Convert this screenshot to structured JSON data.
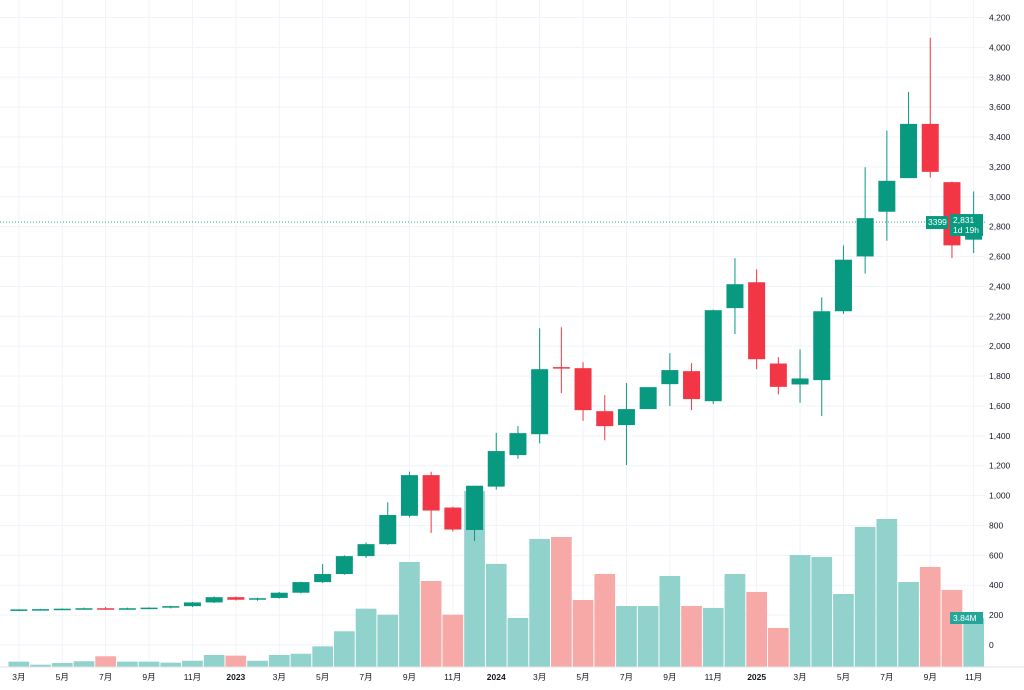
{
  "chart_data": {
    "type": "candlestick",
    "title": "",
    "interval": "1M",
    "colors": {
      "up": "#089981",
      "down": "#f23645",
      "vol_up": "#92d2cc",
      "vol_down": "#f7a9a7",
      "grid": "#f0f3fa",
      "text": "#131722"
    },
    "x_tick_labels": [
      "3月",
      "5月",
      "7月",
      "9月",
      "11月",
      "2023",
      "3月",
      "5月",
      "7月",
      "9月",
      "11月",
      "2024",
      "3月",
      "5月",
      "7月",
      "9月",
      "11月",
      "2025",
      "3月",
      "5月",
      "7月",
      "9月",
      "11月"
    ],
    "y_ticks": [
      0,
      200,
      400,
      600,
      800,
      1000,
      1200,
      1400,
      1600,
      1800,
      2000,
      2200,
      2400,
      2600,
      2800,
      3000,
      3200,
      3400,
      3600,
      3800,
      4000,
      4200
    ],
    "y_tick_labels": [
      "0",
      "200",
      "400",
      "600",
      "800",
      "1,000",
      "1,200",
      "1,400",
      "1,600",
      "1,800",
      "2,000",
      "2,200",
      "2,400",
      "2,600",
      "2,800",
      "3,000",
      "3,200",
      "3,400",
      "3,600",
      "3,800",
      "4,000",
      "4,200"
    ],
    "ylim": [
      0,
      4300
    ],
    "months": [
      "2022-03",
      "2022-04",
      "2022-05",
      "2022-06",
      "2022-07",
      "2022-08",
      "2022-09",
      "2022-10",
      "2022-11",
      "2022-12",
      "2023-01",
      "2023-02",
      "2023-03",
      "2023-04",
      "2023-05",
      "2023-06",
      "2023-07",
      "2023-08",
      "2023-09",
      "2023-10",
      "2023-11",
      "2023-12",
      "2024-01",
      "2024-02",
      "2024-03",
      "2024-04",
      "2024-05",
      "2024-06",
      "2024-07",
      "2024-08",
      "2024-09",
      "2024-10",
      "2024-11",
      "2024-12",
      "2025-01",
      "2025-02",
      "2025-03",
      "2025-04",
      "2025-05",
      "2025-06",
      "2025-07",
      "2025-08",
      "2025-09",
      "2025-10",
      "2025-11"
    ],
    "ohlc": [
      [
        235,
        240,
        230,
        238
      ],
      [
        238,
        242,
        232,
        240
      ],
      [
        240,
        245,
        235,
        243
      ],
      [
        243,
        250,
        238,
        246
      ],
      [
        246,
        255,
        238,
        242
      ],
      [
        242,
        250,
        236,
        246
      ],
      [
        246,
        252,
        240,
        250
      ],
      [
        250,
        262,
        245,
        260
      ],
      [
        260,
        288,
        254,
        285
      ],
      [
        285,
        325,
        281,
        320
      ],
      [
        320,
        325,
        298,
        303
      ],
      [
        303,
        318,
        296,
        313
      ],
      [
        315,
        355,
        310,
        350
      ],
      [
        350,
        424,
        345,
        421
      ],
      [
        421,
        542,
        415,
        475
      ],
      [
        475,
        600,
        470,
        595
      ],
      [
        595,
        686,
        583,
        675
      ],
      [
        675,
        955,
        670,
        870
      ],
      [
        865,
        1160,
        855,
        1137
      ],
      [
        1137,
        1160,
        750,
        900
      ],
      [
        920,
        925,
        760,
        773
      ],
      [
        770,
        1066,
        696,
        1066
      ],
      [
        1060,
        1420,
        1040,
        1298
      ],
      [
        1271,
        1465,
        1246,
        1418
      ],
      [
        1411,
        2120,
        1350,
        1846
      ],
      [
        1860,
        2127,
        1685,
        1850
      ],
      [
        1853,
        1893,
        1500,
        1572
      ],
      [
        1565,
        1672,
        1370,
        1465
      ],
      [
        1472,
        1753,
        1204,
        1579
      ],
      [
        1579,
        1726,
        1579,
        1726
      ],
      [
        1746,
        1953,
        1599,
        1840
      ],
      [
        1833,
        1887,
        1572,
        1646
      ],
      [
        1632,
        2245,
        1612,
        2241
      ],
      [
        2255,
        2589,
        2081,
        2415
      ],
      [
        2428,
        2515,
        1846,
        1913
      ],
      [
        1884,
        1927,
        1677,
        1728
      ],
      [
        1744,
        1978,
        1621,
        1784
      ],
      [
        1773,
        2327,
        1532,
        2234
      ],
      [
        2234,
        2675,
        2216,
        2579
      ],
      [
        2601,
        3198,
        2486,
        2857
      ],
      [
        2900,
        3443,
        2706,
        3107
      ],
      [
        3125,
        3702,
        3125,
        3488
      ],
      [
        3488,
        4065,
        3129,
        3167
      ],
      [
        3098,
        3102,
        2590,
        2675
      ],
      [
        2713,
        3036,
        2624,
        2831
      ]
    ],
    "volume_millions": [
      0.42,
      0.18,
      0.31,
      0.45,
      0.84,
      0.42,
      0.42,
      0.34,
      0.49,
      0.94,
      0.89,
      0.49,
      0.94,
      1.04,
      1.62,
      2.8,
      4.57,
      4.1,
      8.23,
      6.74,
      4.1,
      13.8,
      8.08,
      3.84,
      10.04,
      10.19,
      5.25,
      7.29,
      4.78,
      4.78,
      7.13,
      4.78,
      4.63,
      7.29,
      5.88,
      3.06,
      8.78,
      8.62,
      5.72,
      10.98,
      11.6,
      6.66,
      7.84,
      6.04,
      3.84
    ],
    "last_price": 2831,
    "last_price_label": "2,831",
    "countdown": "1d 19h",
    "symbol_tag": "3399",
    "volume_label": "3.84M"
  }
}
